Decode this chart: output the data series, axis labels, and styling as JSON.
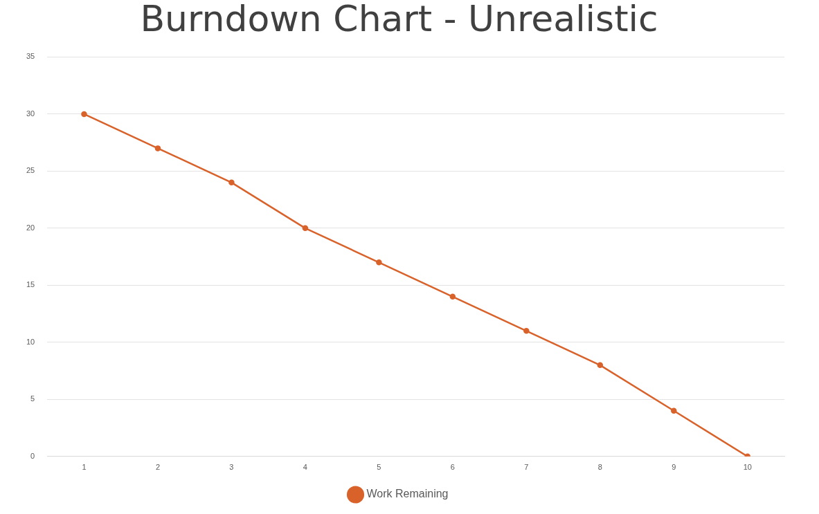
{
  "chart_data": {
    "type": "line",
    "title": "Burndown Chart - Unrealistic",
    "categories": [
      "1",
      "2",
      "3",
      "4",
      "5",
      "6",
      "7",
      "8",
      "9",
      "10"
    ],
    "series": [
      {
        "name": "Work Remaining",
        "color": "#d9622b",
        "values": [
          30,
          27,
          24,
          20,
          17,
          14,
          11,
          8,
          4,
          0
        ]
      }
    ],
    "ylim": [
      0,
      35
    ],
    "yticks": [
      0,
      5,
      10,
      15,
      20,
      25,
      30,
      35
    ],
    "grid": "y",
    "legend": "bottom",
    "marker": "circle",
    "line_style": "solid"
  }
}
